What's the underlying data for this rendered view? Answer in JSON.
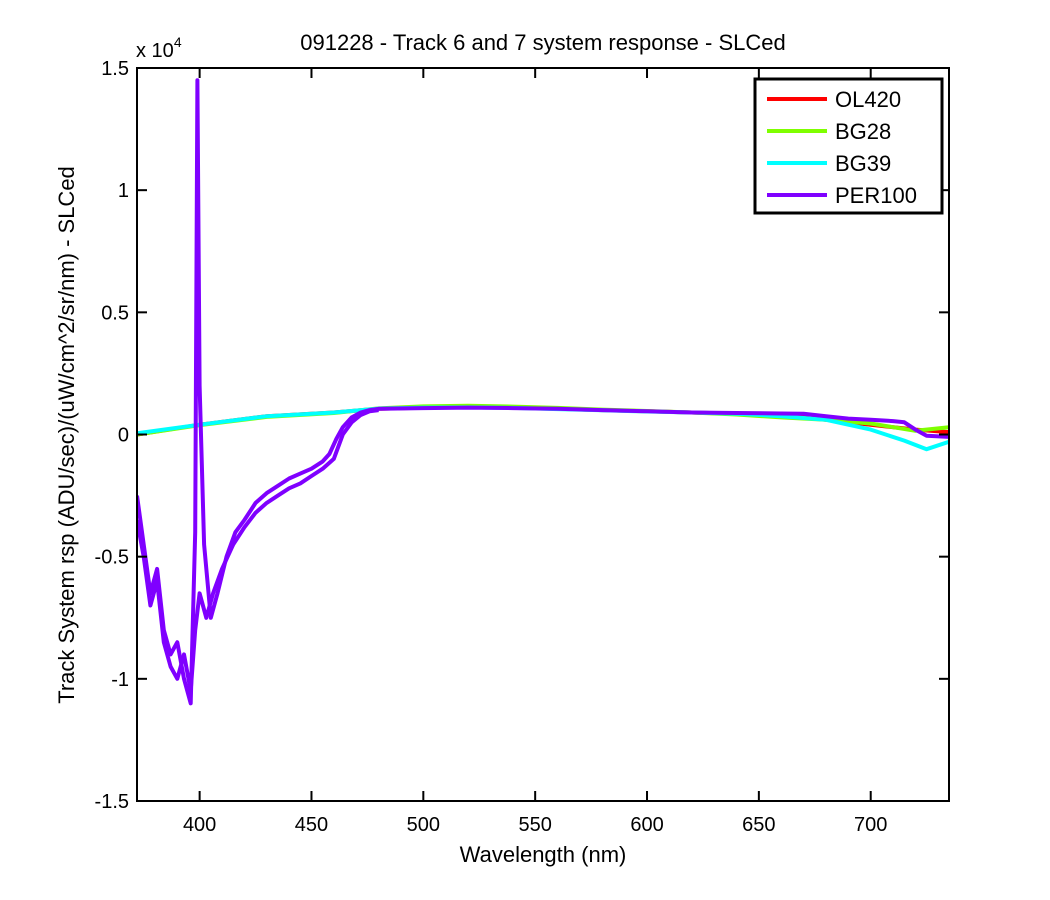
{
  "chart_data": {
    "type": "line",
    "title": "091228 - Track 6 and 7 system response - SLCed",
    "xlabel": "Wavelength (nm)",
    "ylabel": "Track System rsp (ADU/sec)/(uW/cm^2/sr/nm) - SLCed",
    "xlim": [
      372,
      735
    ],
    "ylim": [
      -15000,
      15000
    ],
    "y_exponent_label": "x 10",
    "y_exponent_power": "4",
    "x_ticks": [
      400,
      450,
      500,
      550,
      600,
      650,
      700
    ],
    "x_tick_labels": [
      "400",
      "450",
      "500",
      "550",
      "600",
      "650",
      "700"
    ],
    "y_ticks": [
      -15000,
      -10000,
      -5000,
      0,
      5000,
      10000,
      15000
    ],
    "y_tick_labels": [
      "-1.5",
      "-1",
      "-0.5",
      "0",
      "0.5",
      "1",
      "1.5"
    ],
    "grid": false,
    "legend_position": "top-right",
    "series": [
      {
        "name": "OL420",
        "color": "#ff0000",
        "x": [
          372,
          400,
          430,
          460,
          480,
          500,
          520,
          540,
          560,
          580,
          600,
          620,
          640,
          660,
          680,
          700,
          720,
          735
        ],
        "y": [
          0,
          400,
          750,
          900,
          1050,
          1100,
          1120,
          1100,
          1050,
          1000,
          950,
          900,
          850,
          800,
          600,
          400,
          200,
          100
        ]
      },
      {
        "name": "BG28",
        "color": "#7fff00",
        "x": [
          372,
          400,
          430,
          460,
          480,
          500,
          520,
          540,
          560,
          580,
          600,
          620,
          640,
          660,
          680,
          700,
          720,
          735
        ],
        "y": [
          0,
          380,
          720,
          880,
          1070,
          1150,
          1180,
          1140,
          1090,
          1020,
          960,
          900,
          820,
          700,
          600,
          450,
          150,
          300
        ]
      },
      {
        "name": "BG39",
        "color": "#00ffff",
        "x": [
          372,
          400,
          430,
          460,
          480,
          500,
          520,
          540,
          560,
          580,
          600,
          620,
          640,
          660,
          680,
          700,
          715,
          725,
          735
        ],
        "y": [
          50,
          400,
          750,
          900,
          1060,
          1100,
          1110,
          1090,
          1040,
          990,
          940,
          900,
          850,
          750,
          600,
          200,
          -250,
          -600,
          -300
        ]
      },
      {
        "name": "PER100",
        "color": "#7f00ff",
        "x": [
          372,
          375,
          378,
          381,
          384,
          387,
          390,
          393,
          396,
          398,
          399,
          400,
          402,
          405,
          408,
          412,
          416,
          420,
          425,
          430,
          435,
          440,
          445,
          450,
          455,
          458,
          461,
          464,
          468,
          472,
          476,
          480,
          500,
          520,
          540,
          560,
          580,
          600,
          620,
          640,
          660,
          670,
          680,
          690,
          700,
          710,
          715,
          720,
          725,
          735
        ],
        "y": [
          -2500,
          -4500,
          -6500,
          -5500,
          -8000,
          -9000,
          -8500,
          -10000,
          -11000,
          -4000,
          14500,
          2000,
          -4500,
          -7500,
          -6500,
          -5000,
          -4000,
          -3500,
          -2800,
          -2400,
          -2100,
          -1800,
          -1600,
          -1400,
          -1100,
          -800,
          -200,
          300,
          700,
          900,
          1000,
          1050,
          1080,
          1100,
          1080,
          1050,
          1000,
          950,
          900,
          880,
          860,
          850,
          750,
          650,
          600,
          550,
          500,
          200,
          -50,
          -100
        ]
      },
      {
        "name": "",
        "color": "#7f00ff",
        "x": [
          372,
          375,
          378,
          381,
          384,
          387,
          390,
          393,
          396,
          398,
          400,
          403,
          406,
          410,
          415,
          420,
          425,
          430,
          435,
          440,
          445,
          450,
          455,
          460,
          464,
          468,
          472,
          476,
          480
        ],
        "y": [
          -3500,
          -5000,
          -7000,
          -6000,
          -8500,
          -9500,
          -10000,
          -9000,
          -10500,
          -8000,
          -6500,
          -7500,
          -6500,
          -5500,
          -4500,
          -3800,
          -3200,
          -2800,
          -2500,
          -2200,
          -2000,
          -1700,
          -1400,
          -1000,
          0,
          500,
          800,
          950,
          1000
        ]
      }
    ]
  }
}
